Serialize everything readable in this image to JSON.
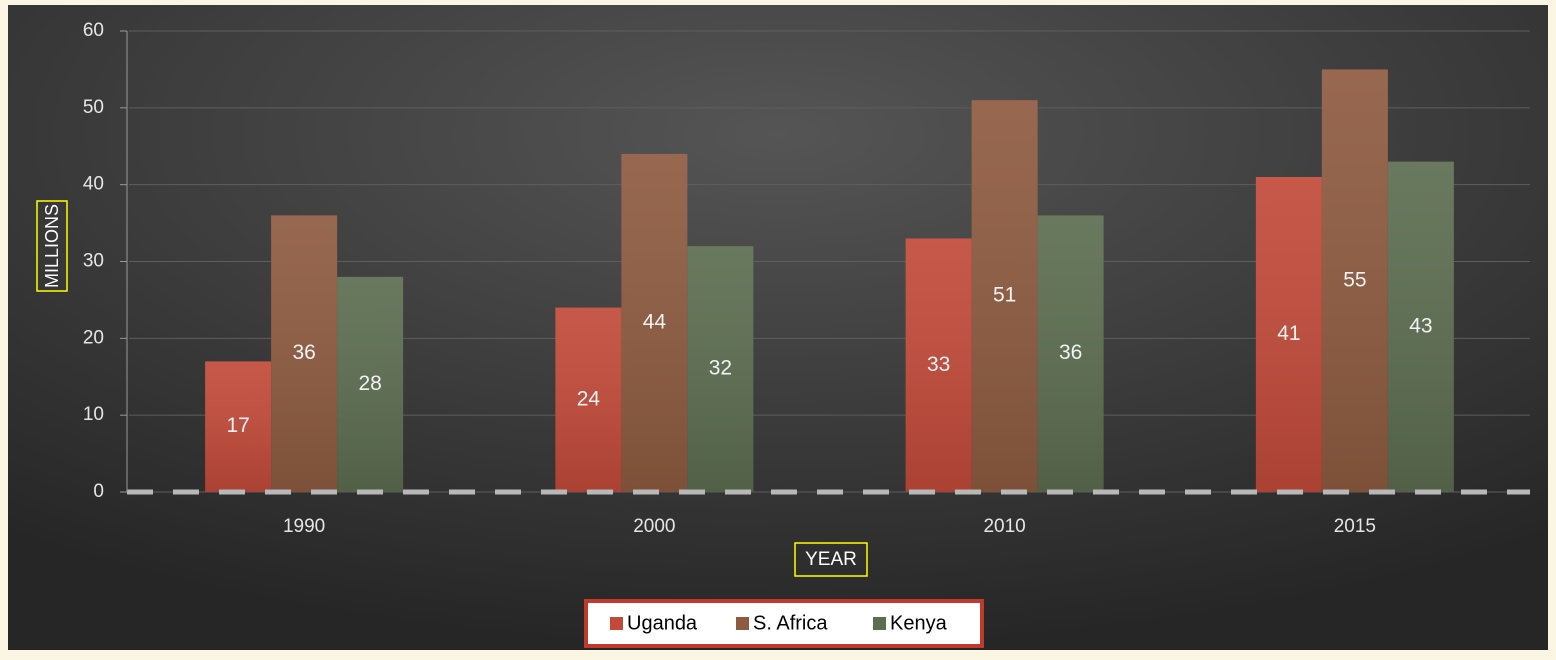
{
  "chart_data": {
    "type": "bar",
    "x_label": "YEAR",
    "y_label": "MILLIONS",
    "categories": [
      "1990",
      "2000",
      "2010",
      "2015"
    ],
    "series": [
      {
        "name": "Uganda",
        "color": "#c24a3a",
        "values": [
          17,
          24,
          33,
          41
        ]
      },
      {
        "name": "S. Africa",
        "color": "#8e5b40",
        "values": [
          36,
          44,
          51,
          55
        ]
      },
      {
        "name": "Kenya",
        "color": "#5c6d50",
        "values": [
          28,
          32,
          36,
          43
        ]
      }
    ],
    "ylim": [
      0,
      60
    ],
    "yticks": [
      0,
      10,
      20,
      30,
      40,
      50,
      60
    ],
    "grid": true,
    "legend": "bottom"
  }
}
